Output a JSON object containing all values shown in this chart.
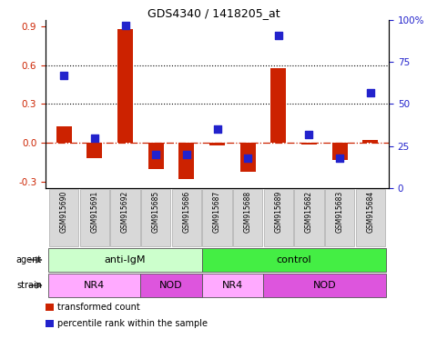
{
  "title": "GDS4340 / 1418205_at",
  "samples": [
    "GSM915690",
    "GSM915691",
    "GSM915692",
    "GSM915685",
    "GSM915686",
    "GSM915687",
    "GSM915688",
    "GSM915689",
    "GSM915682",
    "GSM915683",
    "GSM915684"
  ],
  "transformed_count": [
    0.13,
    -0.12,
    0.88,
    -0.2,
    -0.28,
    -0.02,
    -0.22,
    0.58,
    -0.01,
    -0.13,
    0.02
  ],
  "percentile_rank": [
    67,
    30,
    97,
    20,
    20,
    35,
    18,
    91,
    32,
    18,
    57
  ],
  "ylim_left": [
    -0.35,
    0.95
  ],
  "ylim_right": [
    0,
    100
  ],
  "yticks_left": [
    -0.3,
    0.0,
    0.3,
    0.6,
    0.9
  ],
  "yticks_right": [
    0,
    25,
    50,
    75,
    100
  ],
  "ytick_labels_right": [
    "0",
    "25",
    "50",
    "75",
    "100%"
  ],
  "hlines": [
    0.3,
    0.6
  ],
  "bar_color": "#cc2200",
  "dot_color": "#2222cc",
  "zero_line_color": "#cc2200",
  "agent_groups": [
    {
      "label": "anti-IgM",
      "start": 0,
      "end": 5,
      "color": "#ccffcc"
    },
    {
      "label": "control",
      "start": 5,
      "end": 11,
      "color": "#44ee44"
    }
  ],
  "strain_groups": [
    {
      "label": "NR4",
      "start": 0,
      "end": 3,
      "color": "#ffaaff"
    },
    {
      "label": "NOD",
      "start": 3,
      "end": 5,
      "color": "#dd55dd"
    },
    {
      "label": "NR4",
      "start": 5,
      "end": 7,
      "color": "#ffaaff"
    },
    {
      "label": "NOD",
      "start": 7,
      "end": 11,
      "color": "#dd55dd"
    }
  ],
  "legend_items": [
    {
      "label": "transformed count",
      "color": "#cc2200"
    },
    {
      "label": "percentile rank within the sample",
      "color": "#2222cc"
    }
  ],
  "bar_width": 0.5,
  "dot_size": 40,
  "sample_box_color": "#d8d8d8",
  "left_label_color": "#cc2200",
  "right_label_color": "#2222cc"
}
